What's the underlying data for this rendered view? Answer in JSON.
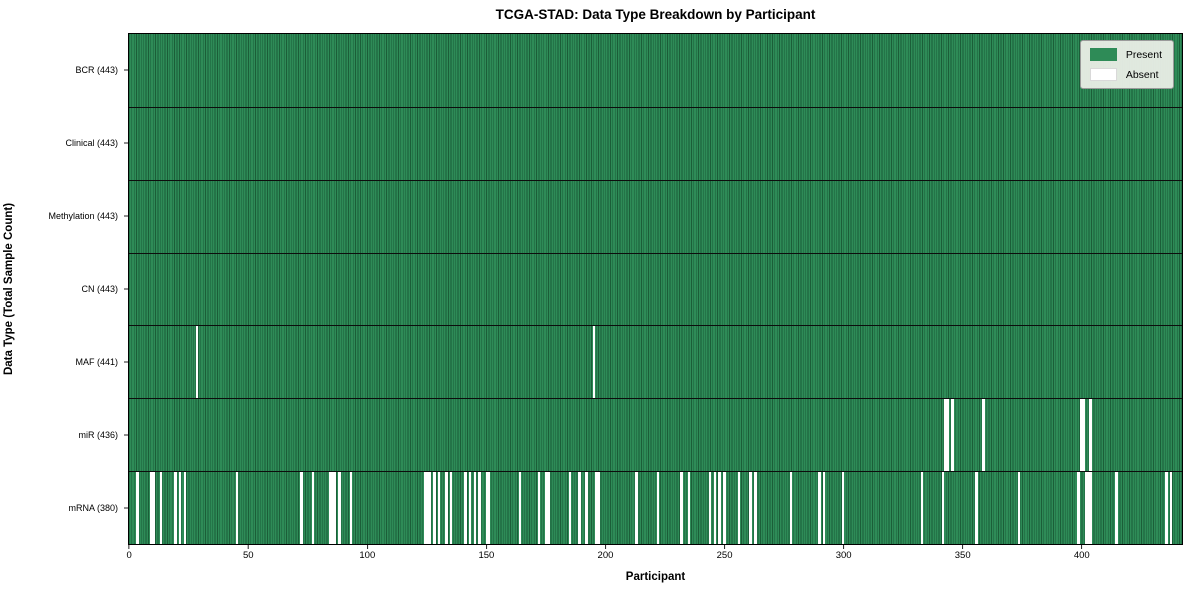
{
  "chart_data": {
    "type": "heatmap",
    "title": "TCGA-STAD: Data Type Breakdown by Participant",
    "xlabel": "Participant",
    "ylabel": "Data Type (Total Sample Count)",
    "x_ticks": [
      0,
      50,
      100,
      150,
      200,
      250,
      300,
      350,
      400
    ],
    "x_range": [
      -0.5,
      442.5
    ],
    "n_participants": 443,
    "grid": false,
    "legend_position": "upper right",
    "legend": [
      "Present",
      "Absent"
    ],
    "colors": {
      "present": "#2e8b57",
      "present_edge": "#1b5e38",
      "absent": "#ffffff",
      "row_divider": "#0d0d0d"
    },
    "rows": [
      {
        "name": "BCR",
        "label": "BCR (443)",
        "present_count": 443,
        "absent_participants": []
      },
      {
        "name": "Clinical",
        "label": "Clinical (443)",
        "present_count": 443,
        "absent_participants": []
      },
      {
        "name": "Methylation",
        "label": "Methylation (443)",
        "present_count": 443,
        "absent_participants": []
      },
      {
        "name": "CN",
        "label": "CN (443)",
        "present_count": 443,
        "absent_participants": []
      },
      {
        "name": "MAF",
        "label": "MAF (441)",
        "present_count": 441,
        "absent_participants": [
          28,
          195
        ]
      },
      {
        "name": "miR",
        "label": "miR (436)",
        "present_count": 436,
        "absent_participants": [
          343,
          344,
          346,
          359,
          400,
          401,
          404
        ]
      },
      {
        "name": "mRNA",
        "label": "mRNA (380)",
        "present_count": 380,
        "absent_participants": [
          3,
          9,
          10,
          13,
          19,
          21,
          23,
          45,
          72,
          77,
          84,
          85,
          86,
          88,
          93,
          124,
          125,
          126,
          128,
          130,
          133,
          135,
          141,
          143,
          145,
          147,
          150,
          151,
          164,
          172,
          175,
          176,
          185,
          189,
          192,
          196,
          197,
          213,
          222,
          232,
          235,
          244,
          246,
          248,
          250,
          256,
          261,
          263,
          278,
          290,
          292,
          300,
          333,
          342,
          356,
          374,
          399,
          402,
          403,
          404,
          415,
          436,
          438
        ]
      }
    ]
  }
}
